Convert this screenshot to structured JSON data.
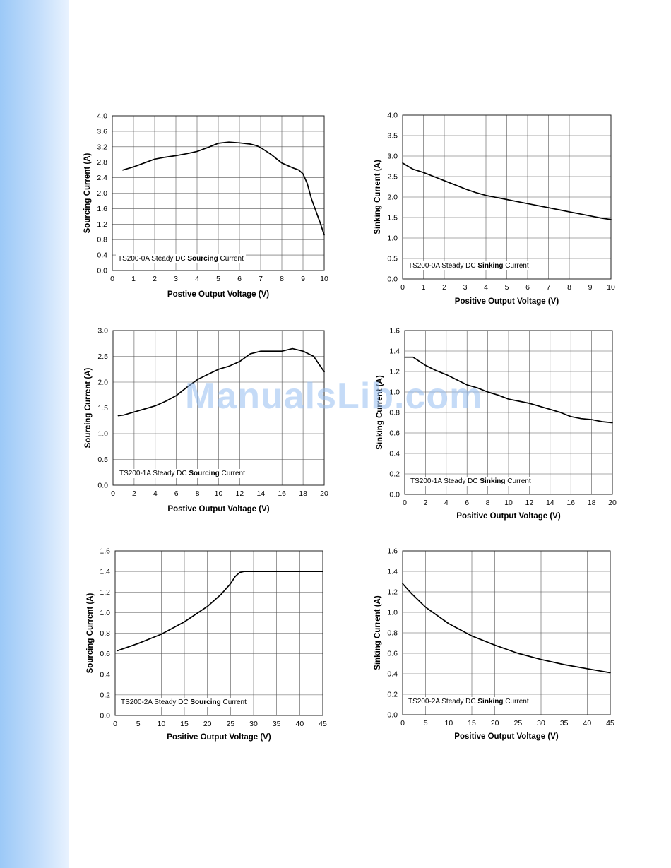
{
  "watermark": "ManualsLib.com",
  "chart_data": [
    {
      "type": "line",
      "annotation_prefix": "TS200-0A Steady DC ",
      "annotation_bold": "Sourcing",
      "annotation_suffix": " Current",
      "xlabel": "Postive Output Voltage (V)",
      "ylabel": "Sourcing Current (A)",
      "xlim": [
        0,
        10
      ],
      "ylim": [
        0,
        4.0
      ],
      "xticks": [
        0,
        1,
        2,
        3,
        4,
        5,
        6,
        7,
        8,
        9,
        10
      ],
      "xtick_labels": [
        "0",
        "1",
        "2",
        "3",
        "4",
        "5",
        "6",
        "7",
        "8",
        "9",
        "10"
      ],
      "yticks": [
        0,
        0.4,
        0.8,
        1.2,
        1.6,
        2.0,
        2.4,
        2.8,
        3.2,
        3.6,
        4.0
      ],
      "ytick_labels": [
        "0.0",
        "0.4",
        "0.8",
        "1.2",
        "1.6",
        "2.0",
        "2.4",
        "2.8",
        "3.2",
        "3.6",
        "4.0"
      ],
      "grid": true,
      "series": [
        {
          "x": [
            0.5,
            1.0,
            1.5,
            2.0,
            2.5,
            3.0,
            3.5,
            4.0,
            4.5,
            5.0,
            5.5,
            6.0,
            6.5,
            6.8,
            7.0,
            7.5,
            8.0,
            8.5,
            8.8,
            9.0,
            9.2,
            9.4,
            9.6,
            9.8,
            10.0
          ],
          "y": [
            2.6,
            2.68,
            2.78,
            2.88,
            2.93,
            2.97,
            3.02,
            3.08,
            3.18,
            3.29,
            3.32,
            3.3,
            3.27,
            3.23,
            3.18,
            3.0,
            2.78,
            2.66,
            2.6,
            2.5,
            2.25,
            1.85,
            1.55,
            1.25,
            0.92
          ]
        }
      ]
    },
    {
      "type": "line",
      "annotation_prefix": "TS200-0A Steady DC ",
      "annotation_bold": "Sinking",
      "annotation_suffix": " Current",
      "xlabel": "Positive Output Voltage (V)",
      "ylabel": "Sinking Current (A)",
      "xlim": [
        0,
        10
      ],
      "ylim": [
        0,
        4.0
      ],
      "xticks": [
        0,
        1,
        2,
        3,
        4,
        5,
        6,
        7,
        8,
        9,
        10
      ],
      "xtick_labels": [
        "0",
        "1",
        "2",
        "3",
        "4",
        "5",
        "6",
        "7",
        "8",
        "9",
        "10"
      ],
      "yticks": [
        0,
        0.5,
        1.0,
        1.5,
        2.0,
        2.5,
        3.0,
        3.5,
        4.0
      ],
      "ytick_labels": [
        "0.0",
        "0.5",
        "1.0",
        "1.5",
        "2.0",
        "2.5",
        "3.0",
        "3.5",
        "4.0"
      ],
      "grid": true,
      "series": [
        {
          "x": [
            0,
            0.5,
            1,
            1.5,
            2,
            2.5,
            3,
            3.5,
            4,
            4.5,
            5,
            5.5,
            6,
            6.5,
            7,
            7.5,
            8,
            8.5,
            9,
            9.5,
            10
          ],
          "y": [
            2.83,
            2.68,
            2.6,
            2.5,
            2.4,
            2.3,
            2.2,
            2.11,
            2.04,
            1.99,
            1.94,
            1.89,
            1.84,
            1.79,
            1.74,
            1.69,
            1.64,
            1.59,
            1.54,
            1.49,
            1.45
          ]
        }
      ]
    },
    {
      "type": "line",
      "annotation_prefix": "TS200-1A Steady DC ",
      "annotation_bold": "Sourcing",
      "annotation_suffix": " Current",
      "xlabel": "Postive Output Voltage (V)",
      "ylabel": "Sourcing Current (A)",
      "xlim": [
        0,
        20
      ],
      "ylim": [
        0,
        3.0
      ],
      "xticks": [
        0,
        2,
        4,
        6,
        8,
        10,
        12,
        14,
        16,
        18,
        20
      ],
      "xtick_labels": [
        "0",
        "2",
        "4",
        "6",
        "8",
        "10",
        "12",
        "14",
        "16",
        "18",
        "20"
      ],
      "yticks": [
        0,
        0.5,
        1.0,
        1.5,
        2.0,
        2.5,
        3.0
      ],
      "ytick_labels": [
        "0.0",
        "0.5",
        "1.0",
        "1.5",
        "2.0",
        "2.5",
        "3.0"
      ],
      "grid": true,
      "series": [
        {
          "x": [
            0.5,
            1,
            2,
            3,
            4,
            5,
            6,
            7,
            8,
            9,
            10,
            11,
            12,
            13,
            14,
            15,
            16,
            17,
            18,
            19,
            19.5,
            20
          ],
          "y": [
            1.35,
            1.36,
            1.42,
            1.48,
            1.54,
            1.63,
            1.74,
            1.9,
            2.05,
            2.15,
            2.25,
            2.31,
            2.4,
            2.55,
            2.6,
            2.6,
            2.6,
            2.65,
            2.6,
            2.5,
            2.35,
            2.2
          ]
        }
      ]
    },
    {
      "type": "line",
      "annotation_prefix": "TS200-1A Steady DC ",
      "annotation_bold": "Sinking",
      "annotation_suffix": " Current",
      "xlabel": "Positive Output Voltage (V)",
      "ylabel": "Sinking Current (A)",
      "xlim": [
        0,
        20
      ],
      "ylim": [
        0,
        1.6
      ],
      "xticks": [
        0,
        2,
        4,
        6,
        8,
        10,
        12,
        14,
        16,
        18,
        20
      ],
      "xtick_labels": [
        "0",
        "2",
        "4",
        "6",
        "8",
        "10",
        "12",
        "14",
        "16",
        "18",
        "20"
      ],
      "yticks": [
        0,
        0.2,
        0.4,
        0.6,
        0.8,
        1.0,
        1.2,
        1.4,
        1.6
      ],
      "ytick_labels": [
        "0.0",
        "0.2",
        "0.4",
        "0.6",
        "0.8",
        "1.0",
        "1.2",
        "1.4",
        "1.6"
      ],
      "grid": true,
      "series": [
        {
          "x": [
            0,
            0.8,
            2,
            3,
            4,
            5,
            6,
            7,
            8,
            9,
            10,
            11,
            12,
            13,
            14,
            15,
            16,
            17,
            18,
            19,
            20
          ],
          "y": [
            1.34,
            1.34,
            1.26,
            1.21,
            1.17,
            1.12,
            1.07,
            1.04,
            1.0,
            0.97,
            0.93,
            0.91,
            0.89,
            0.86,
            0.83,
            0.8,
            0.76,
            0.74,
            0.73,
            0.71,
            0.7
          ]
        }
      ]
    },
    {
      "type": "line",
      "annotation_prefix": "TS200-2A Steady DC ",
      "annotation_bold": "Sourcing",
      "annotation_suffix": " Current",
      "xlabel": "Positive Output Voltage (V)",
      "ylabel": "Sourcing Current (A)",
      "xlim": [
        0,
        45
      ],
      "ylim": [
        0,
        1.6
      ],
      "xticks": [
        0,
        5,
        10,
        15,
        20,
        25,
        30,
        35,
        40,
        45
      ],
      "xtick_labels": [
        "0",
        "5",
        "10",
        "15",
        "20",
        "25",
        "30",
        "35",
        "40",
        "45"
      ],
      "yticks": [
        0,
        0.2,
        0.4,
        0.6,
        0.8,
        1.0,
        1.2,
        1.4,
        1.6
      ],
      "ytick_labels": [
        "0.0",
        "0.2",
        "0.4",
        "0.6",
        "0.8",
        "1.0",
        "1.2",
        "1.4",
        "1.6"
      ],
      "grid": true,
      "series": [
        {
          "x": [
            0.5,
            5,
            10,
            15,
            20,
            23,
            25,
            26,
            27,
            28,
            30,
            35,
            40,
            45
          ],
          "y": [
            0.63,
            0.7,
            0.79,
            0.91,
            1.06,
            1.18,
            1.28,
            1.35,
            1.39,
            1.4,
            1.4,
            1.4,
            1.4,
            1.4
          ]
        }
      ]
    },
    {
      "type": "line",
      "annotation_prefix": "TS200-2A Steady DC ",
      "annotation_bold": "Sinking",
      "annotation_suffix": " Current",
      "xlabel": "Positive Output Voltage (V)",
      "ylabel": "Sinking Current (A)",
      "xlim": [
        0,
        45
      ],
      "ylim": [
        0,
        1.6
      ],
      "xticks": [
        0,
        5,
        10,
        15,
        20,
        25,
        30,
        35,
        40,
        45
      ],
      "xtick_labels": [
        "0",
        "5",
        "10",
        "15",
        "20",
        "25",
        "30",
        "35",
        "40",
        "45"
      ],
      "yticks": [
        0,
        0.2,
        0.4,
        0.6,
        0.8,
        1.0,
        1.2,
        1.4,
        1.6
      ],
      "ytick_labels": [
        "0.0",
        "0.2",
        "0.4",
        "0.6",
        "0.8",
        "1.0",
        "1.2",
        "1.4",
        "1.6"
      ],
      "grid": true,
      "series": [
        {
          "x": [
            0,
            2,
            5,
            10,
            15,
            20,
            25,
            30,
            35,
            40,
            45
          ],
          "y": [
            1.28,
            1.18,
            1.05,
            0.89,
            0.77,
            0.68,
            0.6,
            0.54,
            0.49,
            0.45,
            0.41
          ]
        }
      ]
    }
  ]
}
